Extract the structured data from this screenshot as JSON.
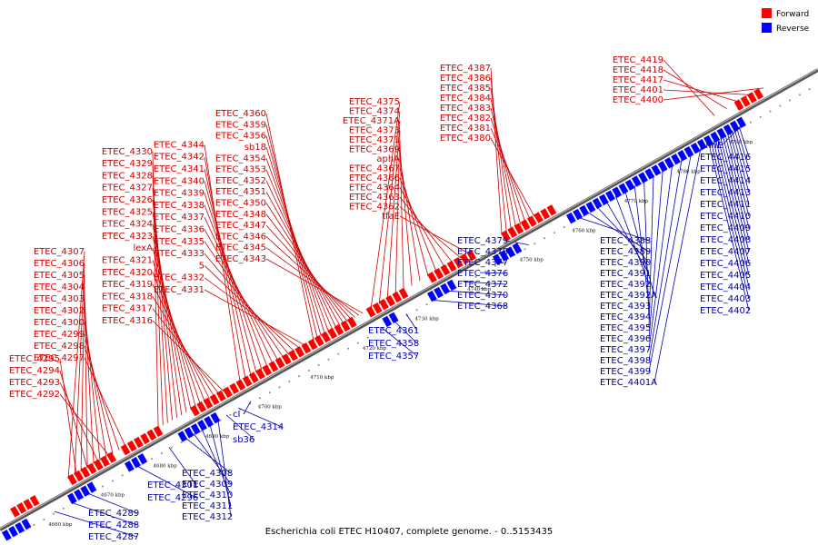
{
  "caption": "Escherichia coli ETEC H10407, complete genome. - 0..5153435",
  "legend": [
    {
      "label": "Forward",
      "color": "#ff0000"
    },
    {
      "label": "Reverse",
      "color": "#0000ff"
    }
  ],
  "colors": {
    "forward": "#ff0000",
    "forward_label": "#cc0000",
    "reverse": "#0000ff",
    "reverse_label": "#0000aa",
    "backbone": "#666666"
  },
  "ticks": [
    "4660 kbp",
    "4670 kbp",
    "4680 kbp",
    "4690 kbp",
    "4700 kbp",
    "4710 kbp",
    "4720 kbp",
    "4730 kbp",
    "4740 kbp",
    "4750 kbp",
    "4760 kbp",
    "4770 kbp",
    "4780 kbp",
    "4790 kbp"
  ],
  "forward_labels": [
    "ETEC_4292",
    "ETEC_4293",
    "ETEC_4294",
    "ETEC_4295",
    "ETEC_4297",
    "ETEC_4298",
    "ETEC_4299",
    "ETEC_4300",
    "ETEC_4302",
    "ETEC_4303",
    "ETEC_4304",
    "ETEC_4305",
    "ETEC_4306",
    "ETEC_4307",
    "ETEC_4316",
    "ETEC_4317",
    "ETEC_4318",
    "ETEC_4319",
    "ETEC_4320",
    "ETEC_4321",
    "lexA",
    "ETEC_4323",
    "ETEC_4324",
    "ETEC_4325",
    "ETEC_4326",
    "ETEC_4327",
    "ETEC_4328",
    "ETEC_4329",
    "ETEC_4330",
    "ETEC_4331",
    "ETEC_4332",
    "5",
    "ETEC_4333",
    "ETEC_4335",
    "ETEC_4336",
    "ETEC_4337",
    "ETEC_4338",
    "ETEC_4339",
    "ETEC_4340",
    "ETEC_4341",
    "ETEC_4342",
    "ETEC_4344",
    "ETEC_4343",
    "ETEC_4345",
    "ETEC_4346",
    "ETEC_4347",
    "ETEC_4348",
    "ETEC_4350",
    "ETEC_4351",
    "ETEC_4352",
    "ETEC_4353",
    "ETEC_4354",
    "sb18",
    "ETEC_4356",
    "ETEC_4359",
    "ETEC_4360",
    "tfaE",
    "ETEC_4362",
    "ETEC_4363",
    "ETEC_4364",
    "ETEC_4366",
    "ETEC_4367",
    "aphA",
    "ETEC_4369",
    "ETEC_4371",
    "ETEC_4373",
    "ETEC_4371A",
    "ETEC_4374",
    "ETEC_4375",
    "ETEC_4380",
    "ETEC_4381",
    "ETEC_4382",
    "ETEC_4383",
    "ETEC_4384",
    "ETEC_4385",
    "ETEC_4386",
    "ETEC_4387",
    "ETEC_4400",
    "ETEC_4401",
    "ETEC_4417",
    "ETEC_4418",
    "ETEC_4419"
  ],
  "reverse_labels": [
    "ETEC_4287",
    "ETEC_4288",
    "ETEC_4289",
    "ETEC_4296",
    "ETEC_4301",
    "ETEC_4308",
    "ETEC_4309",
    "ETEC_4310",
    "ETEC_4311",
    "ETEC_4312",
    "sb36",
    "ETEC_4314",
    "cI",
    "ETEC_4357",
    "ETEC_4358",
    "ETEC_4361",
    "ETEC_4368",
    "ETEC_4370",
    "ETEC_4372",
    "ETEC_4376",
    "ETEC_4377",
    "ETEC_4378",
    "ETEC_4379",
    "ETEC_4388",
    "ETEC_4389",
    "ETEC_4390",
    "ETEC_4391",
    "ETEC_4392",
    "ETEC_4392A",
    "ETEC_4393",
    "ETEC_4394",
    "ETEC_4395",
    "ETEC_4396",
    "ETEC_4397",
    "ETEC_4398",
    "ETEC_4399",
    "ETEC_4401A",
    "ETEC_4402",
    "ETEC_4403",
    "ETEC_4404",
    "ETEC_4405",
    "ETEC_4406",
    "ETEC_4407",
    "ETEC_4408",
    "ETEC_4409",
    "ETEC_4410",
    "ETEC_4411",
    "ETEC_4413",
    "ETEC_4414",
    "ETEC_4415",
    "ETEC_4416",
    "phnE"
  ]
}
